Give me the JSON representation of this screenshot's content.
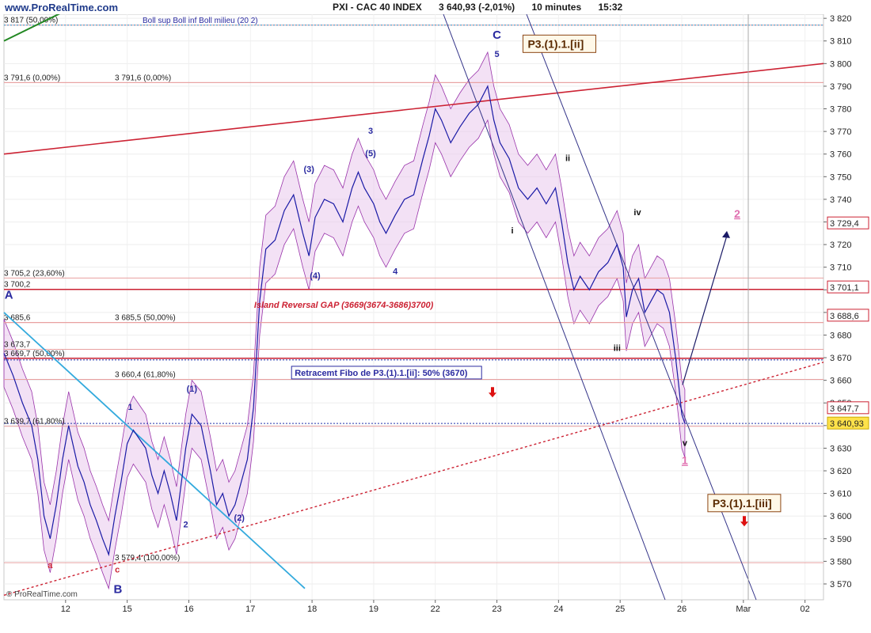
{
  "header": {
    "brand": "www.ProRealTime.com",
    "instrument": "PXI - CAC 40 INDEX",
    "last": "3 640,93 (-2,01%)",
    "interval": "10 minutes",
    "time": "15:32"
  },
  "legend": {
    "boll": "Boll sup Boll inf Boll milieu (20 2)"
  },
  "watermark": "© ProRealTime.com",
  "chart_data": {
    "type": "line",
    "title": "PXI - CAC 40 INDEX",
    "ylim": [
      3563,
      3826
    ],
    "y_ticks": [
      3570,
      3580,
      3590,
      3600,
      3610,
      3620,
      3630,
      3640,
      3650,
      3660,
      3670,
      3680,
      3690,
      3700,
      3710,
      3720,
      3730,
      3740,
      3750,
      3760,
      3770,
      3780,
      3790,
      3800,
      3810,
      3820
    ],
    "y_tick_labels": [
      "3 570",
      "3 580",
      "3 590",
      "3 600",
      "3 610",
      "3 620",
      "3 630",
      "3 640",
      "3 650",
      "3 660",
      "3 670",
      "3 680",
      "3 690",
      "3 700",
      "3 710",
      "3 720",
      "3 730",
      "3 740",
      "3 750",
      "3 760",
      "3 770",
      "3 780",
      "3 790",
      "3 800",
      "3 810",
      "3 820"
    ],
    "x_tick_labels": [
      "12",
      "15",
      "16",
      "17",
      "18",
      "19",
      "22",
      "23",
      "24",
      "25",
      "26",
      "Mar",
      "02"
    ],
    "x_tick_positions": [
      0.5,
      1.5,
      2.5,
      3.5,
      4.5,
      5.5,
      6.5,
      7.5,
      8.5,
      9.5,
      10.5,
      11.5,
      12.5
    ],
    "xlim": [
      -0.5,
      12.8
    ],
    "series": [
      {
        "values": [
          [
            -0.5,
            3672
          ],
          [
            -0.35,
            3662
          ],
          [
            -0.2,
            3650
          ],
          [
            -0.05,
            3640
          ],
          [
            0.05,
            3625
          ],
          [
            0.15,
            3600
          ],
          [
            0.25,
            3590
          ],
          [
            0.35,
            3605
          ],
          [
            0.45,
            3625
          ],
          [
            0.55,
            3640
          ],
          [
            0.7,
            3622
          ],
          [
            0.8,
            3615
          ],
          [
            0.9,
            3605
          ],
          [
            1.0,
            3598
          ],
          [
            1.1,
            3590
          ],
          [
            1.2,
            3583
          ],
          [
            1.3,
            3600
          ],
          [
            1.4,
            3615
          ],
          [
            1.5,
            3632
          ],
          [
            1.6,
            3638
          ],
          [
            1.7,
            3634
          ],
          [
            1.8,
            3630
          ],
          [
            1.9,
            3618
          ],
          [
            2.0,
            3610
          ],
          [
            2.1,
            3620
          ],
          [
            2.2,
            3610
          ],
          [
            2.3,
            3598
          ],
          [
            2.45,
            3630
          ],
          [
            2.55,
            3645
          ],
          [
            2.7,
            3640
          ],
          [
            2.85,
            3620
          ],
          [
            2.95,
            3605
          ],
          [
            3.05,
            3610
          ],
          [
            3.15,
            3600
          ],
          [
            3.25,
            3605
          ],
          [
            3.35,
            3615
          ],
          [
            3.45,
            3625
          ],
          [
            3.55,
            3648
          ],
          [
            3.65,
            3695
          ],
          [
            3.75,
            3718
          ],
          [
            3.9,
            3722
          ],
          [
            4.05,
            3735
          ],
          [
            4.2,
            3742
          ],
          [
            4.35,
            3725
          ],
          [
            4.45,
            3715
          ],
          [
            4.55,
            3732
          ],
          [
            4.7,
            3740
          ],
          [
            4.85,
            3738
          ],
          [
            5.0,
            3730
          ],
          [
            5.15,
            3745
          ],
          [
            5.25,
            3752
          ],
          [
            5.35,
            3745
          ],
          [
            5.5,
            3738
          ],
          [
            5.6,
            3730
          ],
          [
            5.7,
            3725
          ],
          [
            5.85,
            3733
          ],
          [
            6.0,
            3740
          ],
          [
            6.15,
            3742
          ],
          [
            6.3,
            3758
          ],
          [
            6.4,
            3768
          ],
          [
            6.5,
            3780
          ],
          [
            6.6,
            3775
          ],
          [
            6.75,
            3765
          ],
          [
            6.9,
            3772
          ],
          [
            7.05,
            3778
          ],
          [
            7.2,
            3782
          ],
          [
            7.35,
            3790
          ],
          [
            7.45,
            3775
          ],
          [
            7.55,
            3765
          ],
          [
            7.7,
            3758
          ],
          [
            7.85,
            3745
          ],
          [
            8.0,
            3740
          ],
          [
            8.15,
            3745
          ],
          [
            8.3,
            3738
          ],
          [
            8.45,
            3745
          ],
          [
            8.55,
            3730
          ],
          [
            8.65,
            3712
          ],
          [
            8.75,
            3700
          ],
          [
            8.85,
            3706
          ],
          [
            9.0,
            3700
          ],
          [
            9.15,
            3708
          ],
          [
            9.3,
            3712
          ],
          [
            9.45,
            3720
          ],
          [
            9.55,
            3710
          ],
          [
            9.6,
            3688
          ],
          [
            9.7,
            3700
          ],
          [
            9.8,
            3705
          ],
          [
            9.9,
            3690
          ],
          [
            10.0,
            3695
          ],
          [
            10.1,
            3700
          ],
          [
            10.2,
            3698
          ],
          [
            10.3,
            3690
          ],
          [
            10.35,
            3680
          ],
          [
            10.4,
            3670
          ],
          [
            10.45,
            3658
          ],
          [
            10.5,
            3645
          ],
          [
            10.55,
            3640.93
          ]
        ]
      }
    ],
    "horizontal_levels": [
      {
        "label": "3 791,6 (0,00%)",
        "value": 3791.6
      },
      {
        "label": "3 791,6 (0,00%)",
        "value": 3791.6
      },
      {
        "label": "3 705,2 (23,60%)",
        "value": 3705.2
      },
      {
        "label": "3 700,2",
        "value": 3700.2
      },
      {
        "label": "3 685,6",
        "value": 3685.6
      },
      {
        "label": "3 685,5 (50,00%)",
        "value": 3685.5
      },
      {
        "label": "3 673,7",
        "value": 3673.7
      },
      {
        "label": "3 669,7 (50,00%)",
        "value": 3669.7
      },
      {
        "label": "3 660,4 (61,80%)",
        "value": 3660.4
      },
      {
        "label": "3 639,7 (61,80%)",
        "value": 3639.7
      },
      {
        "label": "3 579,4 (100,00%)",
        "value": 3579.4
      },
      {
        "label": "3 817 (50,00%)",
        "value": 3817
      }
    ],
    "right_axis_labels": [
      {
        "label": "3 729,4",
        "value": 3729.4
      },
      {
        "label": "3 701,1",
        "value": 3701.1
      },
      {
        "label": "3 688,6",
        "value": 3688.6
      },
      {
        "label": "3 647,7",
        "value": 3647.7
      },
      {
        "label": "3 640,93",
        "value": 3640.93
      }
    ],
    "wave_labels": [
      {
        "text": "A",
        "x": -0.42,
        "y": 3696
      },
      {
        "text": "B",
        "x": 1.35,
        "y": 3566
      },
      {
        "text": "C",
        "x": 7.5,
        "y": 3811
      },
      {
        "text": "5",
        "x": 7.5,
        "y": 3803
      },
      {
        "text": "3",
        "x": 5.45,
        "y": 3769
      },
      {
        "text": "(5)",
        "x": 5.45,
        "y": 3759
      },
      {
        "text": "(3)",
        "x": 4.45,
        "y": 3752
      },
      {
        "text": "(4)",
        "x": 4.55,
        "y": 3705
      },
      {
        "text": "4",
        "x": 5.85,
        "y": 3707
      },
      {
        "text": "1",
        "x": 1.55,
        "y": 3647
      },
      {
        "text": "(1)",
        "x": 2.55,
        "y": 3655
      },
      {
        "text": "2",
        "x": 2.45,
        "y": 3595
      },
      {
        "text": "(2)",
        "x": 3.32,
        "y": 3598
      },
      {
        "text": "a",
        "x": 0.25,
        "y": 3577
      },
      {
        "text": "c",
        "x": 1.34,
        "y": 3575
      },
      {
        "text": "i",
        "x": 7.75,
        "y": 3725
      },
      {
        "text": "ii",
        "x": 8.65,
        "y": 3757
      },
      {
        "text": "iii",
        "x": 9.45,
        "y": 3673
      },
      {
        "text": "iv",
        "x": 9.78,
        "y": 3733
      },
      {
        "text": "v",
        "x": 10.55,
        "y": 3631
      }
    ],
    "pink_labels": [
      {
        "text": "2",
        "x": 11.4,
        "y": 3732
      },
      {
        "text": "1",
        "x": 10.55,
        "y": 3623
      }
    ],
    "boxes": [
      {
        "text": "P3.(1).1.[ii]",
        "x": 8.0,
        "y": 3807
      },
      {
        "text": "P3.(1).1.[iii]",
        "x": 11.0,
        "y": 3604
      }
    ],
    "annotations": [
      {
        "text": "Island Reversal GAP (3669(3674-3686)3700)",
        "x": 6.0,
        "y": 3692
      },
      {
        "text": "Retracemt Fibo de P3.(1).1.[ii]: 50% (3670)",
        "x": 7.2,
        "y": 3662
      }
    ],
    "legend_text": "Boll sup Boll inf Boll milieu (20 2)"
  }
}
